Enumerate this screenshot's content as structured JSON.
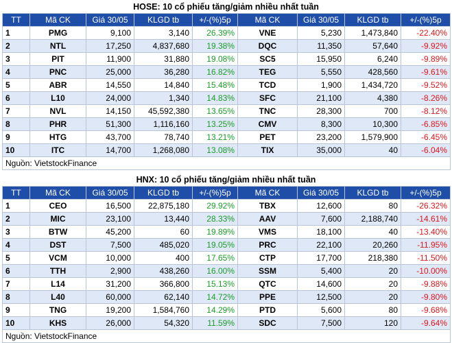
{
  "sections": [
    {
      "title": "HOSE: 10 cổ phiếu tăng/giảm nhiều nhất tuần",
      "headers": [
        "TT",
        "Mã CK",
        "Giá 30/05",
        "KLGD tb",
        "+/-(%)5p",
        "Mã CK",
        "Giá 30/05",
        "KLGD tb",
        "+/-(%)5p"
      ],
      "rows": [
        [
          "1",
          "PMG",
          "9,100",
          "3,140",
          "26.39%",
          "VNE",
          "5,230",
          "1,473,840",
          "-22.40%"
        ],
        [
          "2",
          "NTL",
          "17,250",
          "4,837,680",
          "19.38%",
          "DQC",
          "11,350",
          "57,640",
          "-9.92%"
        ],
        [
          "3",
          "PIT",
          "11,900",
          "31,880",
          "19.08%",
          "SC5",
          "15,950",
          "6,240",
          "-9.89%"
        ],
        [
          "4",
          "PNC",
          "25,000",
          "36,280",
          "16.82%",
          "TEG",
          "5,550",
          "428,560",
          "-9.61%"
        ],
        [
          "5",
          "ABR",
          "14,550",
          "14,840",
          "15.48%",
          "TCD",
          "1,900",
          "1,434,720",
          "-9.52%"
        ],
        [
          "6",
          "L10",
          "24,000",
          "1,340",
          "14.83%",
          "SFC",
          "21,100",
          "4,380",
          "-8.26%"
        ],
        [
          "7",
          "NVL",
          "14,150",
          "45,592,380",
          "13.65%",
          "TNC",
          "28,300",
          "700",
          "-8.12%"
        ],
        [
          "8",
          "PHR",
          "51,300",
          "1,116,160",
          "13.25%",
          "CMV",
          "8,300",
          "10,300",
          "-6.85%"
        ],
        [
          "9",
          "HTG",
          "43,700",
          "78,740",
          "13.21%",
          "PET",
          "23,200",
          "1,579,900",
          "-6.45%"
        ],
        [
          "10",
          "ITC",
          "14,700",
          "1,268,080",
          "13.08%",
          "TIX",
          "35,000",
          "40",
          "-6.04%"
        ]
      ],
      "source": "Nguồn: VietstockFinance"
    },
    {
      "title": "HNX: 10 cổ phiếu tăng/giảm nhiều nhất tuần",
      "headers": [
        "TT",
        "Mã CK",
        "Giá 30/05",
        "KLGD tb",
        "+/-(%)5p",
        "Mã CK",
        "Giá 30/05",
        "KLGD tb",
        "+/-(%)5p"
      ],
      "rows": [
        [
          "1",
          "CEO",
          "16,500",
          "22,875,180",
          "29.92%",
          "TBX",
          "12,600",
          "80",
          "-26.32%"
        ],
        [
          "2",
          "MIC",
          "23,100",
          "13,440",
          "28.33%",
          "AAV",
          "7,600",
          "2,188,740",
          "-14.61%"
        ],
        [
          "3",
          "BTW",
          "45,200",
          "60",
          "19.89%",
          "VMS",
          "18,100",
          "40",
          "-13.40%"
        ],
        [
          "4",
          "DST",
          "7,500",
          "485,020",
          "19.05%",
          "PRC",
          "22,100",
          "20,260",
          "-11.95%"
        ],
        [
          "5",
          "VCM",
          "10,000",
          "400",
          "17.65%",
          "CTP",
          "17,700",
          "218,380",
          "-11.50%"
        ],
        [
          "6",
          "TTH",
          "2,900",
          "438,260",
          "16.00%",
          "SSM",
          "5,400",
          "20",
          "-10.00%"
        ],
        [
          "7",
          "L14",
          "31,200",
          "366,800",
          "15.13%",
          "QTC",
          "14,600",
          "20",
          "-9.88%"
        ],
        [
          "8",
          "L40",
          "60,000",
          "62,140",
          "14.72%",
          "PPE",
          "12,500",
          "20",
          "-9.80%"
        ],
        [
          "9",
          "TNG",
          "19,200",
          "1,584,760",
          "14.29%",
          "PTD",
          "5,600",
          "80",
          "-9.68%"
        ],
        [
          "10",
          "KHS",
          "26,000",
          "54,320",
          "11.59%",
          "SDC",
          "7,500",
          "120",
          "-9.64%"
        ]
      ],
      "source": "Nguồn: VietstockFinance"
    }
  ],
  "colors": {
    "header_bg": "#1f4ea8",
    "stripe": "#dfe8f6",
    "up": "#1a9c2a",
    "down": "#e0161c"
  }
}
